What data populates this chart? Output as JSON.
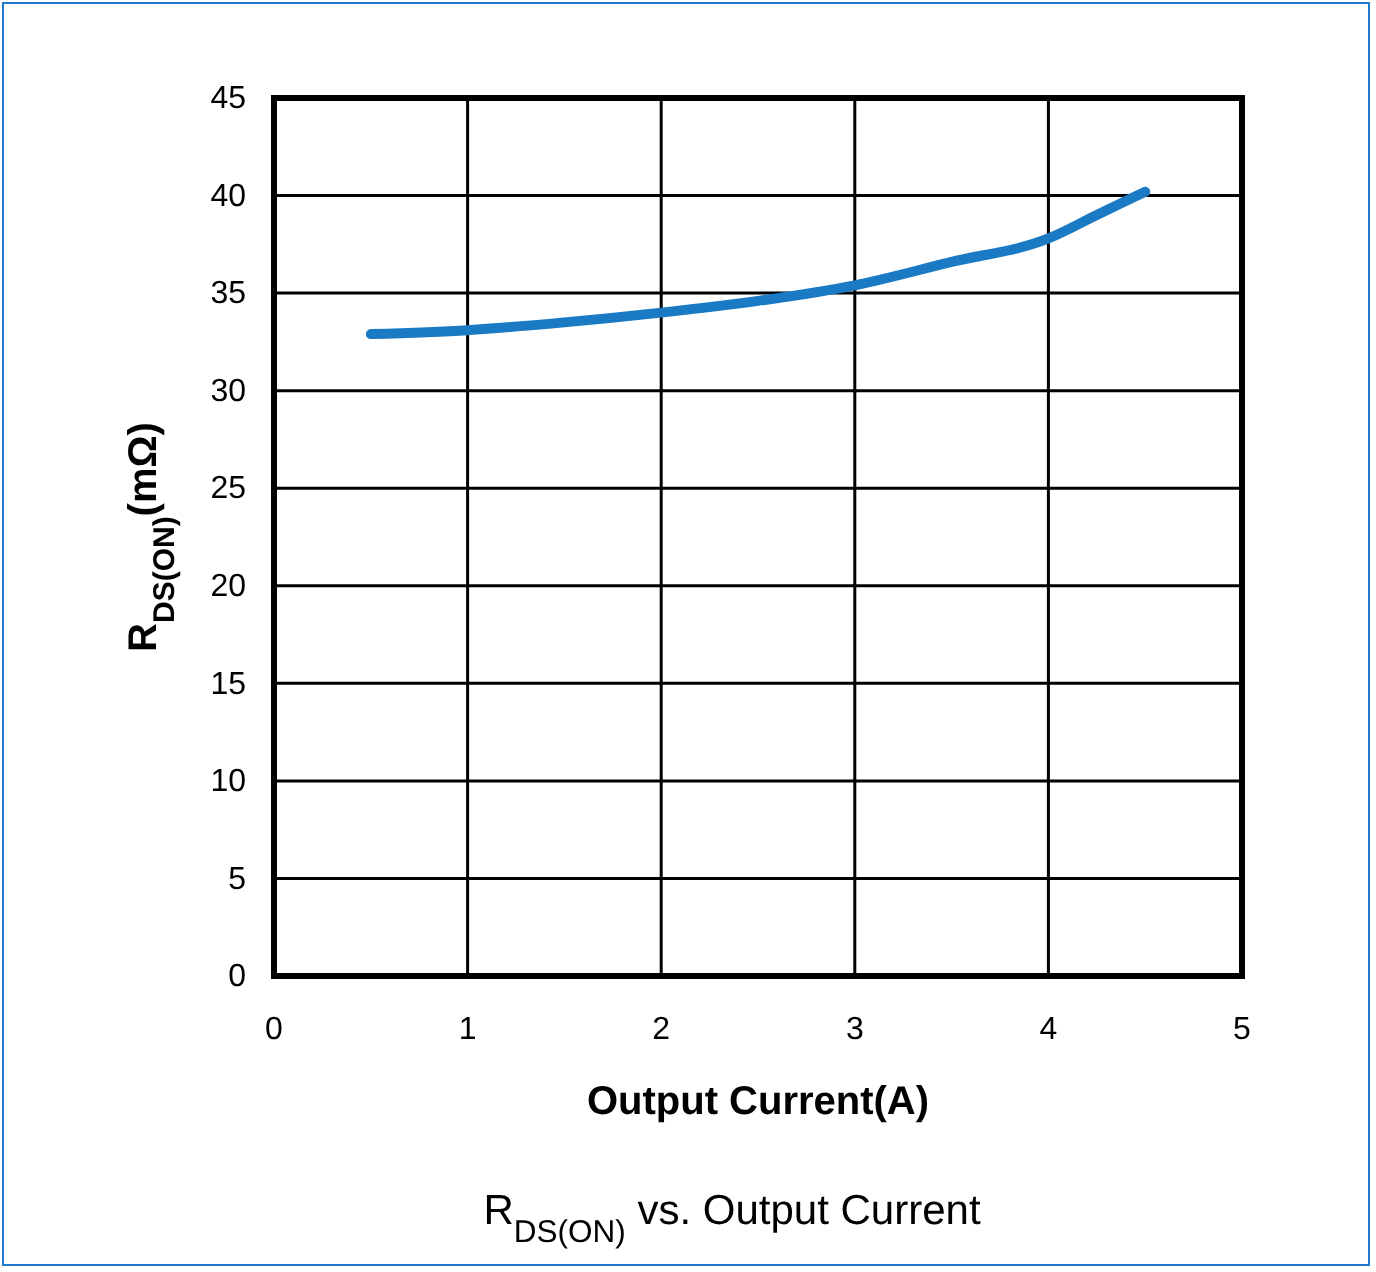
{
  "chart_data": {
    "type": "line",
    "title": "R$_{DS(ON)}$ vs. Output Current",
    "xlabel": "Output Current(A)",
    "ylabel": "R$_{DS(ON)}$(mΩ)",
    "xlim": [
      0,
      5
    ],
    "xticks": [
      0,
      1,
      2,
      3,
      4,
      5
    ],
    "ylim": [
      0,
      45
    ],
    "yticks": [
      0,
      5,
      10,
      15,
      20,
      25,
      30,
      35,
      40,
      45
    ],
    "grid": true,
    "series": [
      {
        "color": "#1a7ac4",
        "x": [
          0.5,
          1,
          1.5,
          2,
          2.5,
          3,
          3.5,
          4,
          4.25,
          4.5
        ],
        "values": [
          32.9,
          33.1,
          33.5,
          34.0,
          34.6,
          35.4,
          36.6,
          37.8,
          39.0,
          40.2
        ]
      }
    ]
  }
}
